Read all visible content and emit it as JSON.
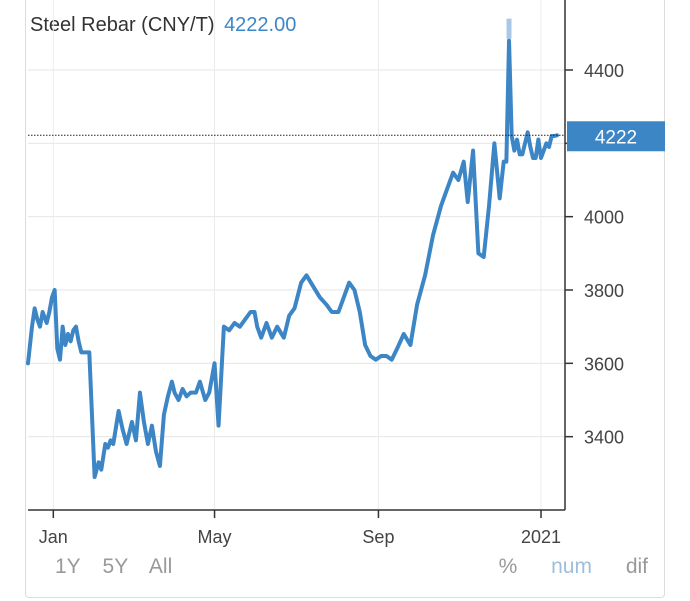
{
  "header": {
    "title": "Steel Rebar (CNY/T)",
    "price": "4222.00"
  },
  "current_marker": {
    "label": "4222",
    "value": 4222
  },
  "controls": {
    "ranges": [
      "1Y",
      "5Y",
      "All"
    ],
    "modes": [
      "%",
      "num",
      "dif"
    ],
    "active_mode": "num"
  },
  "colors": {
    "line": "#3d86c6",
    "marker": "#3d86c6",
    "spike": "#a9c8e6"
  },
  "chart_data": {
    "type": "line",
    "ylim": [
      3200,
      4560
    ],
    "yticks": [
      3400,
      3600,
      3800,
      4000,
      4200,
      4400
    ],
    "ytick_labels": [
      "3400",
      "3600",
      "3800",
      "4000",
      "",
      "4400"
    ],
    "xtick_labels": [
      "Jan",
      "May",
      "Sep",
      "2021"
    ],
    "xtick_dates": [
      "2020-01-01",
      "2020-05-01",
      "2020-09-01",
      "2021-01-01"
    ],
    "grid": true,
    "series": [
      {
        "dates": [
          "2019-12-13",
          "2019-12-16",
          "2019-12-18",
          "2019-12-20",
          "2019-12-22",
          "2019-12-24",
          "2019-12-27",
          "2019-12-29",
          "2019-12-31",
          "2020-01-02",
          "2020-01-04",
          "2020-01-06",
          "2020-01-08",
          "2020-01-10",
          "2020-01-12",
          "2020-01-14",
          "2020-01-16",
          "2020-01-18",
          "2020-01-20",
          "2020-01-22",
          "2020-01-25",
          "2020-01-28",
          "2020-02-01",
          "2020-02-04",
          "2020-02-06",
          "2020-02-09",
          "2020-02-11",
          "2020-02-13",
          "2020-02-15",
          "2020-02-19",
          "2020-02-22",
          "2020-02-25",
          "2020-02-29",
          "2020-03-03",
          "2020-03-06",
          "2020-03-09",
          "2020-03-12",
          "2020-03-15",
          "2020-03-18",
          "2020-03-21",
          "2020-03-24",
          "2020-03-27",
          "2020-03-30",
          "2020-04-01",
          "2020-04-04",
          "2020-04-07",
          "2020-04-10",
          "2020-04-13",
          "2020-04-17",
          "2020-04-20",
          "2020-04-24",
          "2020-04-27",
          "2020-05-01",
          "2020-05-04",
          "2020-05-08",
          "2020-05-12",
          "2020-05-16",
          "2020-05-20",
          "2020-05-24",
          "2020-05-28",
          "2020-05-31",
          "2020-06-02",
          "2020-06-05",
          "2020-06-09",
          "2020-06-13",
          "2020-06-17",
          "2020-06-22",
          "2020-06-26",
          "2020-06-30",
          "2020-07-05",
          "2020-07-09",
          "2020-07-14",
          "2020-07-19",
          "2020-07-24",
          "2020-07-28",
          "2020-08-02",
          "2020-08-06",
          "2020-08-10",
          "2020-08-14",
          "2020-08-18",
          "2020-08-22",
          "2020-08-26",
          "2020-08-30",
          "2020-09-03",
          "2020-09-07",
          "2020-09-11",
          "2020-09-15",
          "2020-09-20",
          "2020-09-25",
          "2020-09-30",
          "2020-10-06",
          "2020-10-12",
          "2020-10-18",
          "2020-10-23",
          "2020-10-27",
          "2020-10-31",
          "2020-11-04",
          "2020-11-07",
          "2020-11-11",
          "2020-11-15",
          "2020-11-19",
          "2020-11-23",
          "2020-11-27",
          "2020-12-01",
          "2020-12-04",
          "2020-12-06",
          "2020-12-08",
          "2020-12-10",
          "2020-12-12",
          "2020-12-14",
          "2020-12-16",
          "2020-12-18",
          "2020-12-20",
          "2020-12-22",
          "2020-12-24",
          "2020-12-26",
          "2020-12-28",
          "2020-12-30",
          "2021-01-01",
          "2021-01-03",
          "2021-01-05",
          "2021-01-07",
          "2021-01-09",
          "2021-01-11",
          "2021-01-13"
        ],
        "values": [
          3600,
          3700,
          3750,
          3720,
          3700,
          3740,
          3710,
          3740,
          3780,
          3800,
          3640,
          3610,
          3700,
          3650,
          3680,
          3660,
          3690,
          3700,
          3660,
          3630,
          3630,
          3630,
          3290,
          3330,
          3310,
          3380,
          3370,
          3390,
          3380,
          3470,
          3420,
          3380,
          3440,
          3390,
          3520,
          3440,
          3380,
          3430,
          3360,
          3320,
          3460,
          3510,
          3550,
          3520,
          3500,
          3530,
          3510,
          3520,
          3520,
          3550,
          3500,
          3520,
          3600,
          3430,
          3700,
          3690,
          3710,
          3700,
          3720,
          3740,
          3740,
          3700,
          3670,
          3710,
          3670,
          3700,
          3670,
          3730,
          3750,
          3820,
          3840,
          3810,
          3780,
          3760,
          3740,
          3740,
          3780,
          3820,
          3800,
          3740,
          3650,
          3620,
          3610,
          3620,
          3620,
          3610,
          3640,
          3680,
          3650,
          3760,
          3840,
          3950,
          4030,
          4080,
          4120,
          4100,
          4150,
          4040,
          4180,
          3900,
          3890,
          4030,
          4200,
          4050,
          4150,
          4150,
          4480,
          4220,
          4180,
          4210,
          4170,
          4170,
          4200,
          4230,
          4190,
          4160,
          4160,
          4210,
          4160,
          4180,
          4200,
          4190,
          4220,
          4220,
          4222
        ]
      }
    ]
  }
}
